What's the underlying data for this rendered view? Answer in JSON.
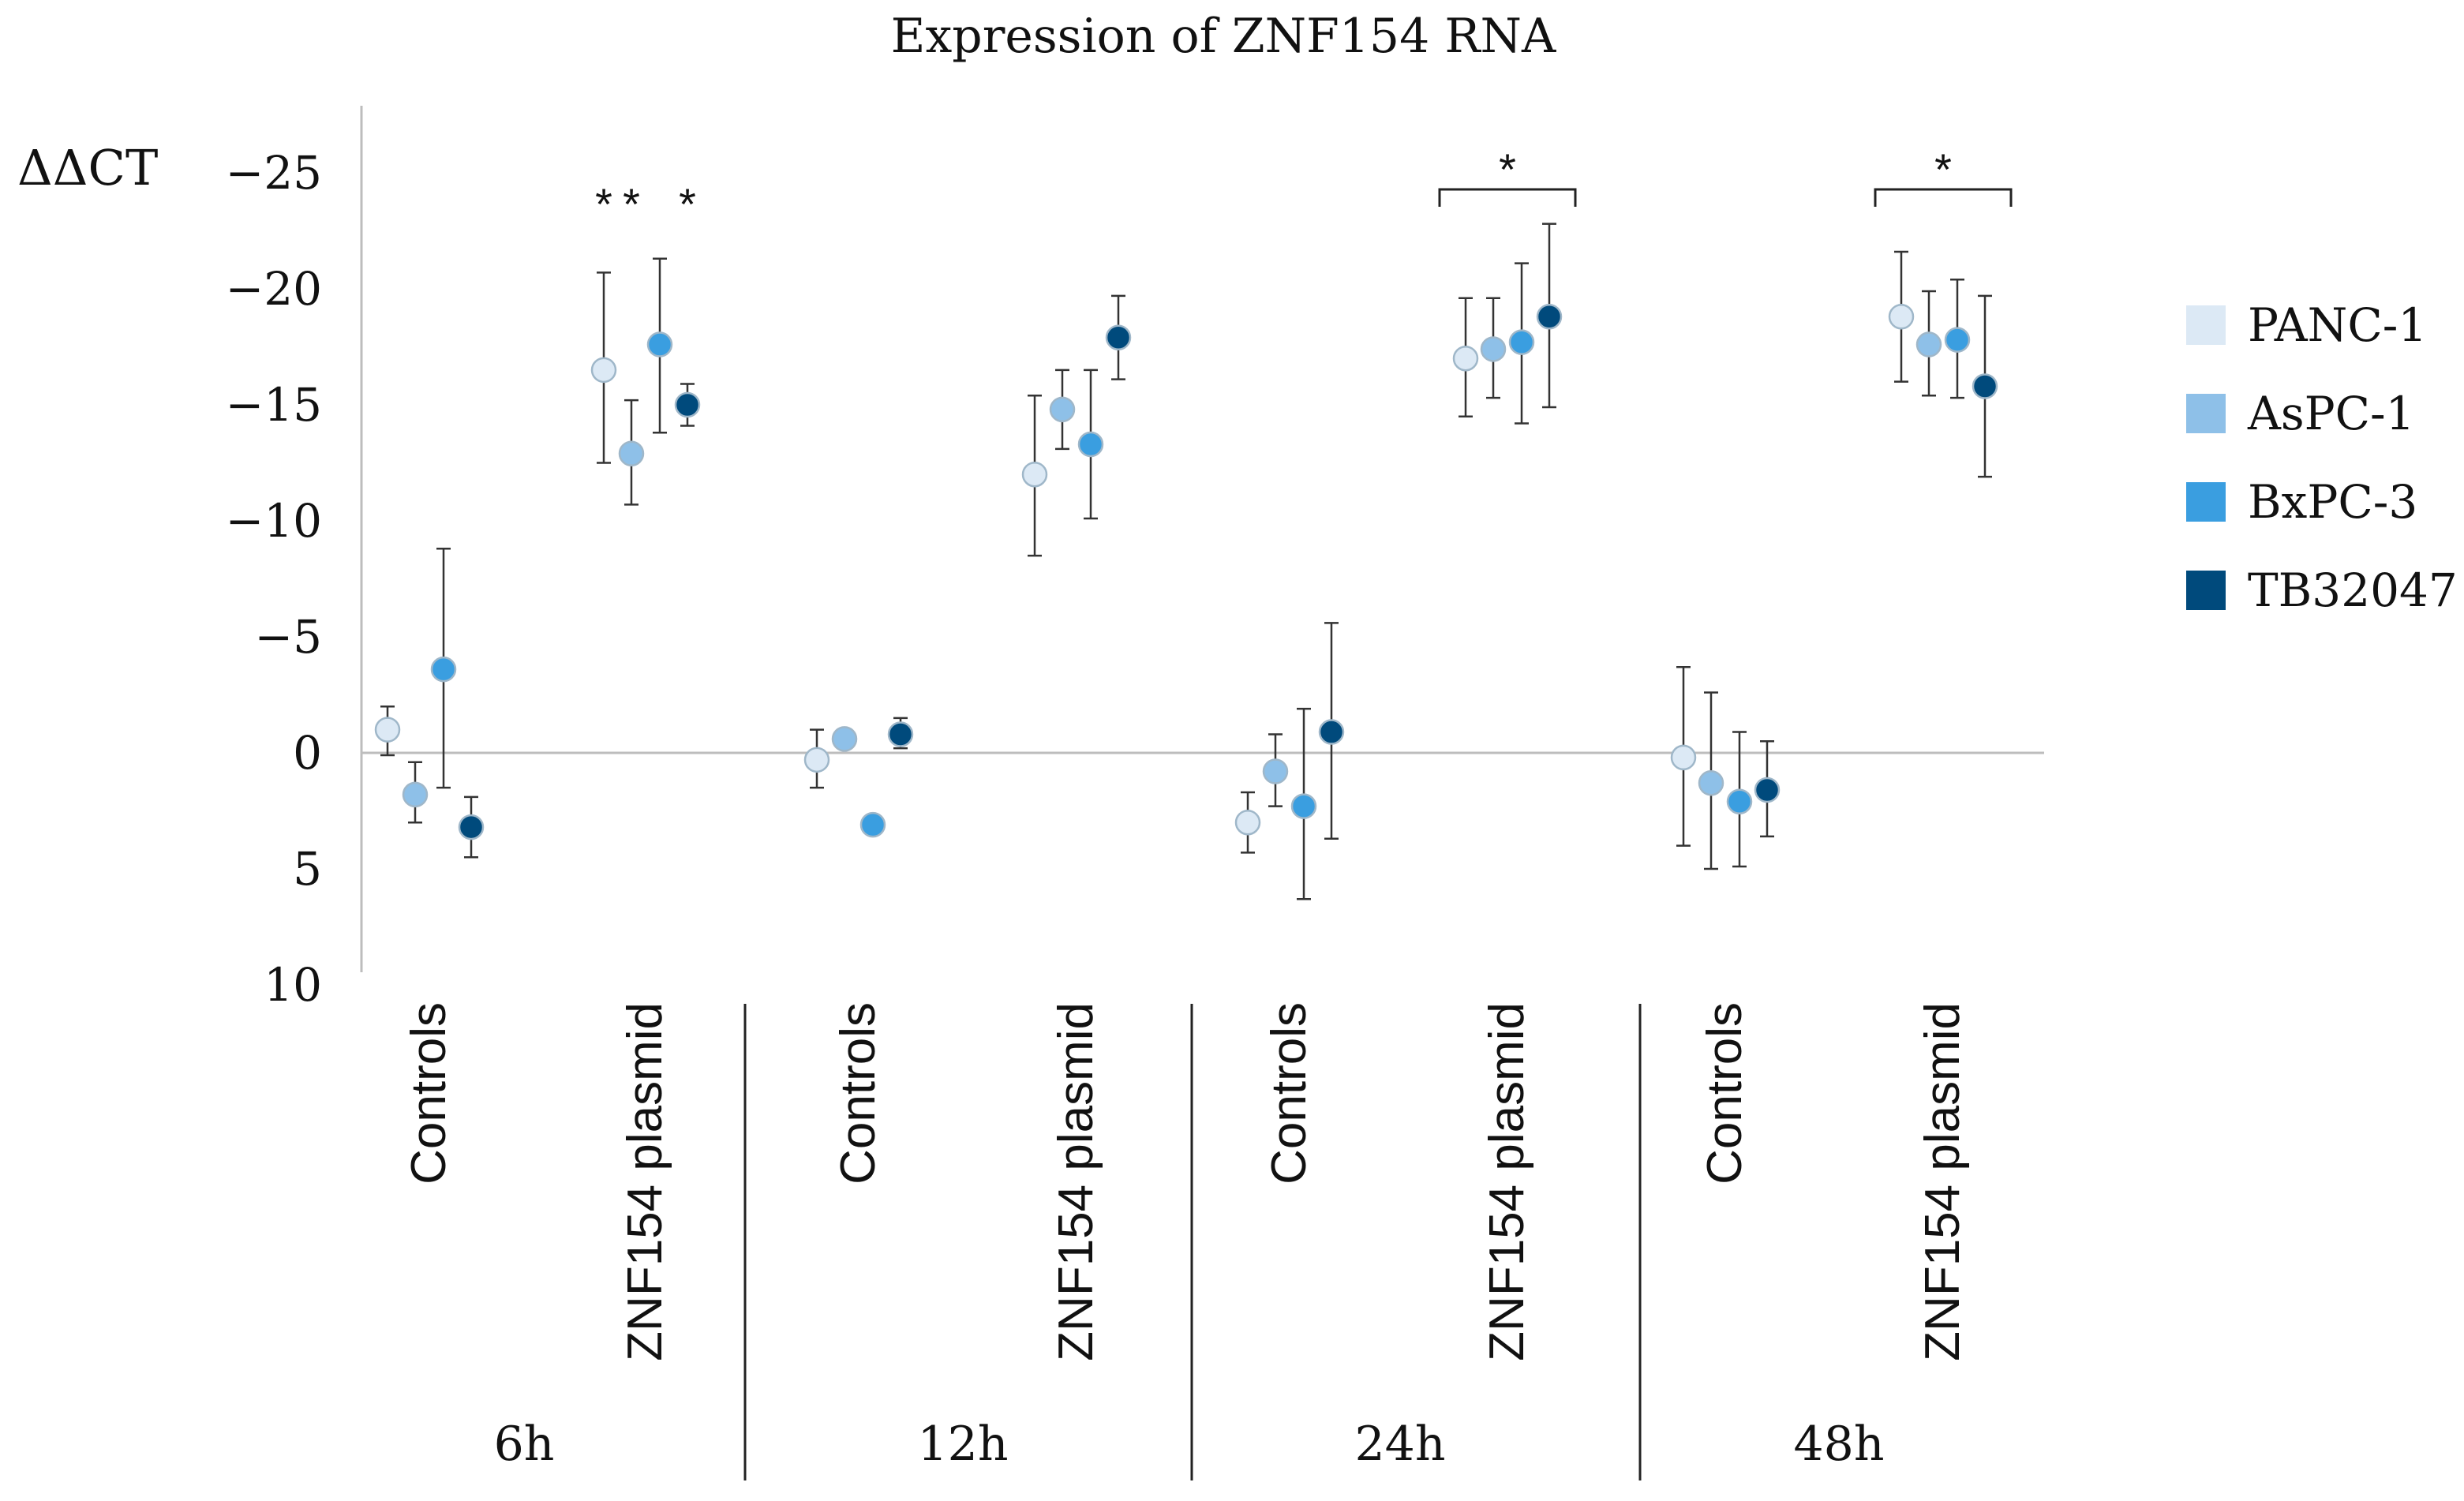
{
  "chart_data": {
    "type": "scatter",
    "title": "Expression of ZNF154 RNA",
    "ylabel": "ΔΔCT",
    "ylim": [
      -28,
      10
    ],
    "y_inverted": true,
    "yticks": [
      -25,
      -20,
      -15,
      -10,
      -5,
      0,
      5,
      10
    ],
    "ytick_labels": [
      "−25",
      "−20",
      "−15",
      "−10",
      "−5",
      "0",
      "5",
      "10"
    ],
    "groups": [
      {
        "time": "6h",
        "categories": [
          "Controls",
          "ZNF154 plasmid"
        ]
      },
      {
        "time": "12h",
        "categories": [
          "Controls",
          "ZNF154 plasmid"
        ]
      },
      {
        "time": "24h",
        "categories": [
          "Controls",
          "ZNF154 plasmid"
        ]
      },
      {
        "time": "48h",
        "categories": [
          "Controls",
          "ZNF154 plasmid"
        ]
      }
    ],
    "series": [
      {
        "name": "PANC-1",
        "color": "#dce9f5",
        "values": [
          -1.0,
          -16.5,
          0.3,
          -12.0,
          3.0,
          -17.0,
          0.2,
          -18.8
        ],
        "err_low": [
          0.1,
          -12.5,
          1.5,
          -8.5,
          4.3,
          -14.5,
          4.0,
          -16.0
        ],
        "err_high": [
          -2.0,
          -20.7,
          -1.0,
          -15.4,
          1.7,
          -19.6,
          -3.7,
          -21.6
        ]
      },
      {
        "name": "AsPC-1",
        "color": "#8ec0e8",
        "values": [
          1.8,
          -12.9,
          -0.6,
          -14.8,
          0.8,
          -17.4,
          1.3,
          -17.6
        ],
        "err_low": [
          3.0,
          -10.7,
          null,
          -13.1,
          2.3,
          -15.3,
          5.0,
          -15.4
        ],
        "err_high": [
          0.4,
          -15.2,
          null,
          -16.5,
          -0.8,
          -19.6,
          -2.6,
          -19.9
        ]
      },
      {
        "name": "BxPC-3",
        "color": "#3a9ee0",
        "values": [
          -3.6,
          -17.6,
          3.1,
          -13.3,
          2.3,
          -17.7,
          2.1,
          -17.8
        ],
        "err_low": [
          1.5,
          -13.8,
          null,
          -10.1,
          6.3,
          -14.2,
          4.9,
          -15.3
        ],
        "err_high": [
          -8.8,
          -21.3,
          null,
          -16.5,
          -1.9,
          -21.1,
          -0.9,
          -20.4
        ]
      },
      {
        "name": "TB32047",
        "color": "#004a7c",
        "values": [
          3.2,
          -15.0,
          -0.8,
          -17.9,
          -0.9,
          -18.8,
          1.6,
          -15.8
        ],
        "err_low": [
          4.5,
          -14.1,
          -0.2,
          -16.1,
          3.7,
          -14.9,
          3.6,
          -11.9
        ],
        "err_high": [
          1.9,
          -15.9,
          -1.5,
          -19.7,
          -5.6,
          -22.8,
          -0.5,
          -19.7
        ]
      }
    ],
    "annotations": [
      {
        "text": "*",
        "group": 0,
        "category": 1,
        "series": 0
      },
      {
        "text": "*",
        "group": 0,
        "category": 1,
        "series": 1
      },
      {
        "text": "*",
        "group": 0,
        "category": 1,
        "series": 3
      },
      {
        "text": "*",
        "group": 2,
        "category": 1,
        "bracket": true
      },
      {
        "text": "*",
        "group": 3,
        "category": 1,
        "bracket": true
      }
    ],
    "legend_position": "right",
    "grid": false
  }
}
